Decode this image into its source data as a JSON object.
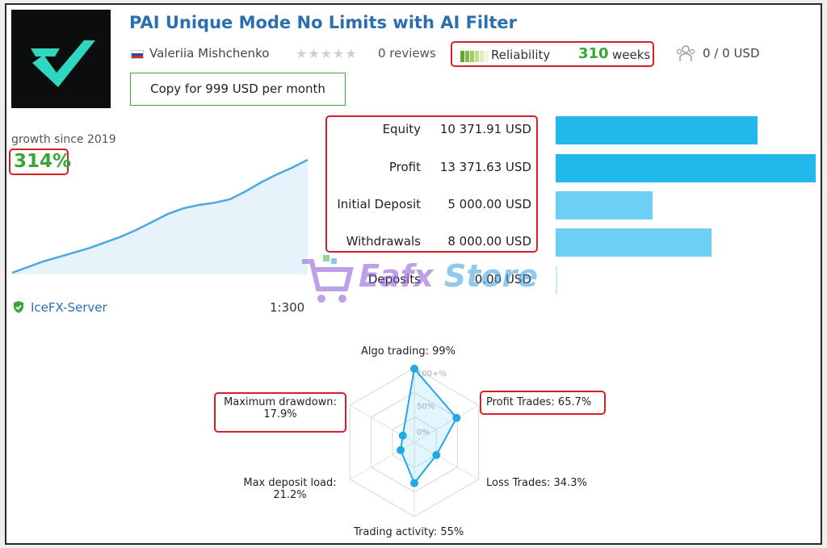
{
  "title": "PAI Unique Mode No Limits with AI Filter",
  "author": {
    "name": "Valeriia Mishchenko",
    "flag_colors": [
      "#ffffff",
      "#1f4fb4",
      "#d52b1e"
    ]
  },
  "reviews": {
    "stars_filled": 0,
    "stars_total": 5,
    "label": "0 reviews"
  },
  "reliability": {
    "label": "Reliability",
    "weeks": "310",
    "weeks_label": "weeks",
    "bars": [
      "#66a832",
      "#7fbf3f",
      "#9ccf5e",
      "#bde08d",
      "#dbeec1",
      "#eef6e2"
    ]
  },
  "subscribers": {
    "label": "0 / 0 USD",
    "icon": "users-icon"
  },
  "copy_button": "Copy for 999 USD per month",
  "growth": {
    "label": "growth since 2019",
    "value": "314%",
    "color": "#3aa63a"
  },
  "growth_curve": [
    0.0,
    0.05,
    0.1,
    0.14,
    0.18,
    0.22,
    0.27,
    0.32,
    0.38,
    0.45,
    0.52,
    0.57,
    0.6,
    0.62,
    0.65,
    0.72,
    0.8,
    0.87,
    0.93,
    1.0
  ],
  "server": {
    "name": "IceFX-Server",
    "icon": "shield-check-icon"
  },
  "leverage": "1:300",
  "stats": [
    {
      "label": "Equity",
      "value": "10 371.91 USD",
      "amount": 10371.91,
      "shade": "dark"
    },
    {
      "label": "Profit",
      "value": "13 371.63 USD",
      "amount": 13371.63,
      "shade": "dark"
    },
    {
      "label": "Initial Deposit",
      "value": "5 000.00 USD",
      "amount": 5000.0,
      "shade": "light"
    },
    {
      "label": "Withdrawals",
      "value": "8 000.00 USD",
      "amount": 8000.0,
      "shade": "light"
    },
    {
      "label": "Deposits",
      "value": "0.00 USD",
      "amount": 0.0,
      "shade": "light"
    }
  ],
  "watermark": {
    "word1": "Eafx",
    "word2": "Store"
  },
  "radar": {
    "scale_labels": [
      "100+%",
      "50%",
      "0%"
    ],
    "axes": [
      {
        "label": "Algo trading: 99%",
        "value": 0.99
      },
      {
        "label": "Profit Trades: 65.7%",
        "value": 0.657
      },
      {
        "label": "Loss Trades: 34.3%",
        "value": 0.343
      },
      {
        "label": "Trading activity: 55%",
        "value": 0.55
      },
      {
        "label": "Max deposit load:",
        "value2": "21.2%",
        "value": 0.212
      },
      {
        "label": "Maximum drawdown:",
        "value2": "17.9%",
        "value": 0.179
      }
    ]
  },
  "colors": {
    "accent": "#22b8ec",
    "highlight": "#d42027",
    "link": "#2a6fb0",
    "positive": "#3aa63a"
  }
}
